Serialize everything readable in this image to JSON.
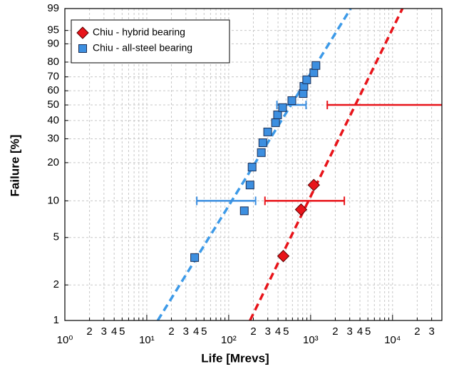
{
  "chart_data": {
    "type": "scatter",
    "xlabel": "Life  [Mrevs]",
    "ylabel": "Failure  [%]",
    "xscale": "log",
    "yscale": "weibull",
    "xlim": [
      1,
      40000
    ],
    "ylim": [
      1,
      99
    ],
    "xticks": [
      {
        "value": 1,
        "label": "10⁰"
      },
      2,
      3,
      4,
      5,
      {
        "value": 10,
        "label": "10¹"
      },
      {
        "value": 20,
        "label": "2"
      },
      {
        "value": 30,
        "label": "3"
      },
      {
        "value": 40,
        "label": "4"
      },
      {
        "value": 50,
        "label": "5"
      },
      {
        "value": 100,
        "label": "10²"
      },
      {
        "value": 200,
        "label": "2"
      },
      {
        "value": 300,
        "label": "3"
      },
      {
        "value": 400,
        "label": "4"
      },
      {
        "value": 500,
        "label": "5"
      },
      {
        "value": 1000,
        "label": "10³"
      },
      {
        "value": 2000,
        "label": "2"
      },
      {
        "value": 3000,
        "label": "3"
      },
      {
        "value": 4000,
        "label": "4"
      },
      {
        "value": 5000,
        "label": "5"
      },
      {
        "value": 10000,
        "label": "10⁴"
      },
      {
        "value": 20000,
        "label": "2"
      },
      {
        "value": 30000,
        "label": "3"
      }
    ],
    "xminor": [
      6,
      7,
      8,
      9,
      60,
      70,
      80,
      90,
      600,
      700,
      800,
      900,
      6000,
      7000,
      8000,
      9000
    ],
    "yticks": [
      1,
      2,
      5,
      10,
      20,
      30,
      40,
      50,
      60,
      70,
      80,
      90,
      95,
      99
    ],
    "grid": true,
    "legend": "upper left",
    "series": [
      {
        "name": "Chiu - hybrid bearing",
        "color": "#e8141a",
        "marker": "diamond",
        "x": [
          464,
          764,
          1094
        ],
        "values": [
          3.5,
          8.5,
          13.4
        ],
        "error_bars": [
          {
            "y": 10,
            "x": [
              277,
              2578
            ]
          },
          {
            "y": 50,
            "x": [
              1597,
              45000
            ]
          }
        ]
      },
      {
        "name": "Chiu - all-steel bearing",
        "color": "#3d8fe0",
        "marker": "square",
        "x": [
          38.4,
          155,
          182,
          193,
          250,
          261,
          299,
          373,
          395,
          455,
          590,
          811,
          828,
          896,
          1094,
          1161
        ],
        "values": [
          3.4,
          8.3,
          13.4,
          18.5,
          23.8,
          28.1,
          33.5,
          38.7,
          43.5,
          48.2,
          53,
          58,
          63.2,
          67.9,
          72.9,
          77.8
        ],
        "error_bars": [
          {
            "y": 10,
            "x": [
              40.8,
              213
            ]
          },
          {
            "y": 50,
            "x": [
              388,
              879
            ]
          }
        ]
      }
    ],
    "fit_lines": [
      {
        "color": "#3d9ae8",
        "x": [
          13.6,
          3085
        ],
        "values": [
          1,
          99
        ]
      },
      {
        "color": "#e8141a",
        "x": [
          182,
          13200
        ],
        "values": [
          1,
          99
        ]
      }
    ]
  }
}
